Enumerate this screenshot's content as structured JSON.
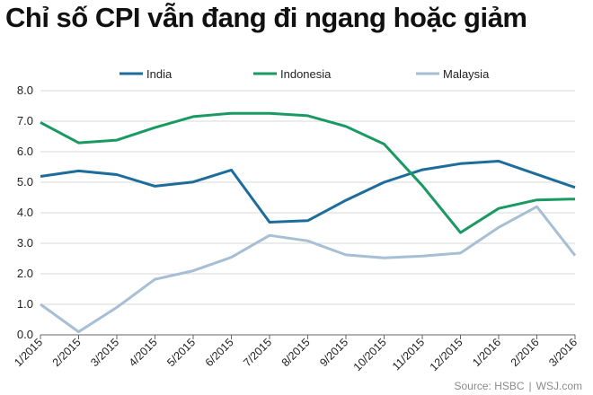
{
  "header": {
    "title": "Chỉ số CPI vẫn đang đi ngang hoặc giảm"
  },
  "footer": {
    "source": "Source: HSBC",
    "separator": "|",
    "publisher": "WSJ.com"
  },
  "chart_data": {
    "type": "line",
    "title": "Chỉ số CPI vẫn đang đi ngang hoặc giảm",
    "xlabel": "",
    "ylabel": "",
    "categories": [
      "1/2015",
      "2/2015",
      "3/2015",
      "4/2015",
      "5/2015",
      "6/2015",
      "7/2015",
      "8/2015",
      "9/2015",
      "10/2015",
      "11/2015",
      "12/2015",
      "1/2016",
      "2/2016",
      "3/2016"
    ],
    "yticks": [
      "0.0",
      "1.0",
      "2.0",
      "3.0",
      "4.0",
      "5.0",
      "6.0",
      "7.0",
      "8.0"
    ],
    "ylim": [
      0,
      8
    ],
    "grid": true,
    "legend_position": "top",
    "series": [
      {
        "name": "India",
        "color": "#1c6c9c",
        "values": [
          5.19,
          5.37,
          5.25,
          4.87,
          5.01,
          5.4,
          3.69,
          3.74,
          4.41,
          5.0,
          5.41,
          5.61,
          5.69,
          5.26,
          4.83
        ]
      },
      {
        "name": "Indonesia",
        "color": "#1a9a62",
        "values": [
          6.96,
          6.29,
          6.38,
          6.79,
          7.15,
          7.26,
          7.26,
          7.18,
          6.83,
          6.25,
          4.89,
          3.35,
          4.14,
          4.42,
          4.45
        ]
      },
      {
        "name": "Malaysia",
        "color": "#a6bfd4",
        "values": [
          1.0,
          0.1,
          0.9,
          1.82,
          2.1,
          2.54,
          3.26,
          3.08,
          2.62,
          2.52,
          2.58,
          2.68,
          3.52,
          4.2,
          2.6
        ]
      }
    ]
  }
}
